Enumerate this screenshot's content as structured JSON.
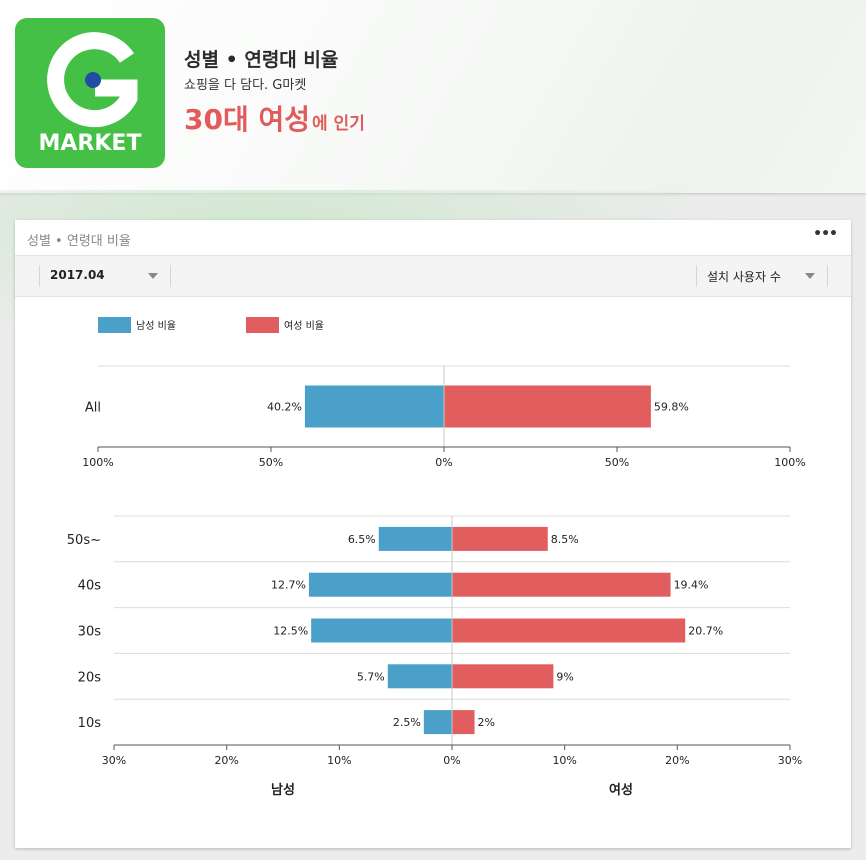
{
  "header": {
    "title": "성별 • 연령대 비율",
    "subtitle": "쇼핑을 다 담다. G마켓",
    "highlight": "30대 여성",
    "highlight_suffix": "에 인기"
  },
  "logo": {
    "letter": "G",
    "word": "MARKET",
    "icon": "gmarket-logo-icon",
    "color": "#43c045"
  },
  "card": {
    "title": "성별 • 연령대 비율",
    "more_label": "•••",
    "date_filter": "2017.04",
    "metric_filter": "설치 사용자 수"
  },
  "colors": {
    "male": "#4aa0c8",
    "female": "#e25d5e",
    "accent": "#e25b5b"
  },
  "chart_data": [
    {
      "type": "bar",
      "orientation": "diverging",
      "categories": [
        "All"
      ],
      "series": [
        {
          "name": "남성 비율",
          "values": [
            40.2
          ]
        },
        {
          "name": "여성 비율",
          "values": [
            59.8
          ]
        }
      ],
      "xlim": [
        -100,
        100
      ],
      "ticks": [
        "100%",
        "50%",
        "0%",
        "50%",
        "100%"
      ],
      "legend": "top-left"
    },
    {
      "type": "bar",
      "orientation": "diverging",
      "categories": [
        "50s~",
        "40s",
        "30s",
        "20s",
        "10s"
      ],
      "series": [
        {
          "name": "남성",
          "values": [
            6.5,
            12.7,
            12.5,
            5.7,
            2.5
          ]
        },
        {
          "name": "여성",
          "values": [
            8.5,
            19.4,
            20.7,
            9,
            2
          ]
        }
      ],
      "xlim": [
        -30,
        30
      ],
      "ticks": [
        "30%",
        "20%",
        "10%",
        "0%",
        "10%",
        "20%",
        "30%"
      ],
      "xlabel_left": "남성",
      "xlabel_right": "여성"
    }
  ]
}
